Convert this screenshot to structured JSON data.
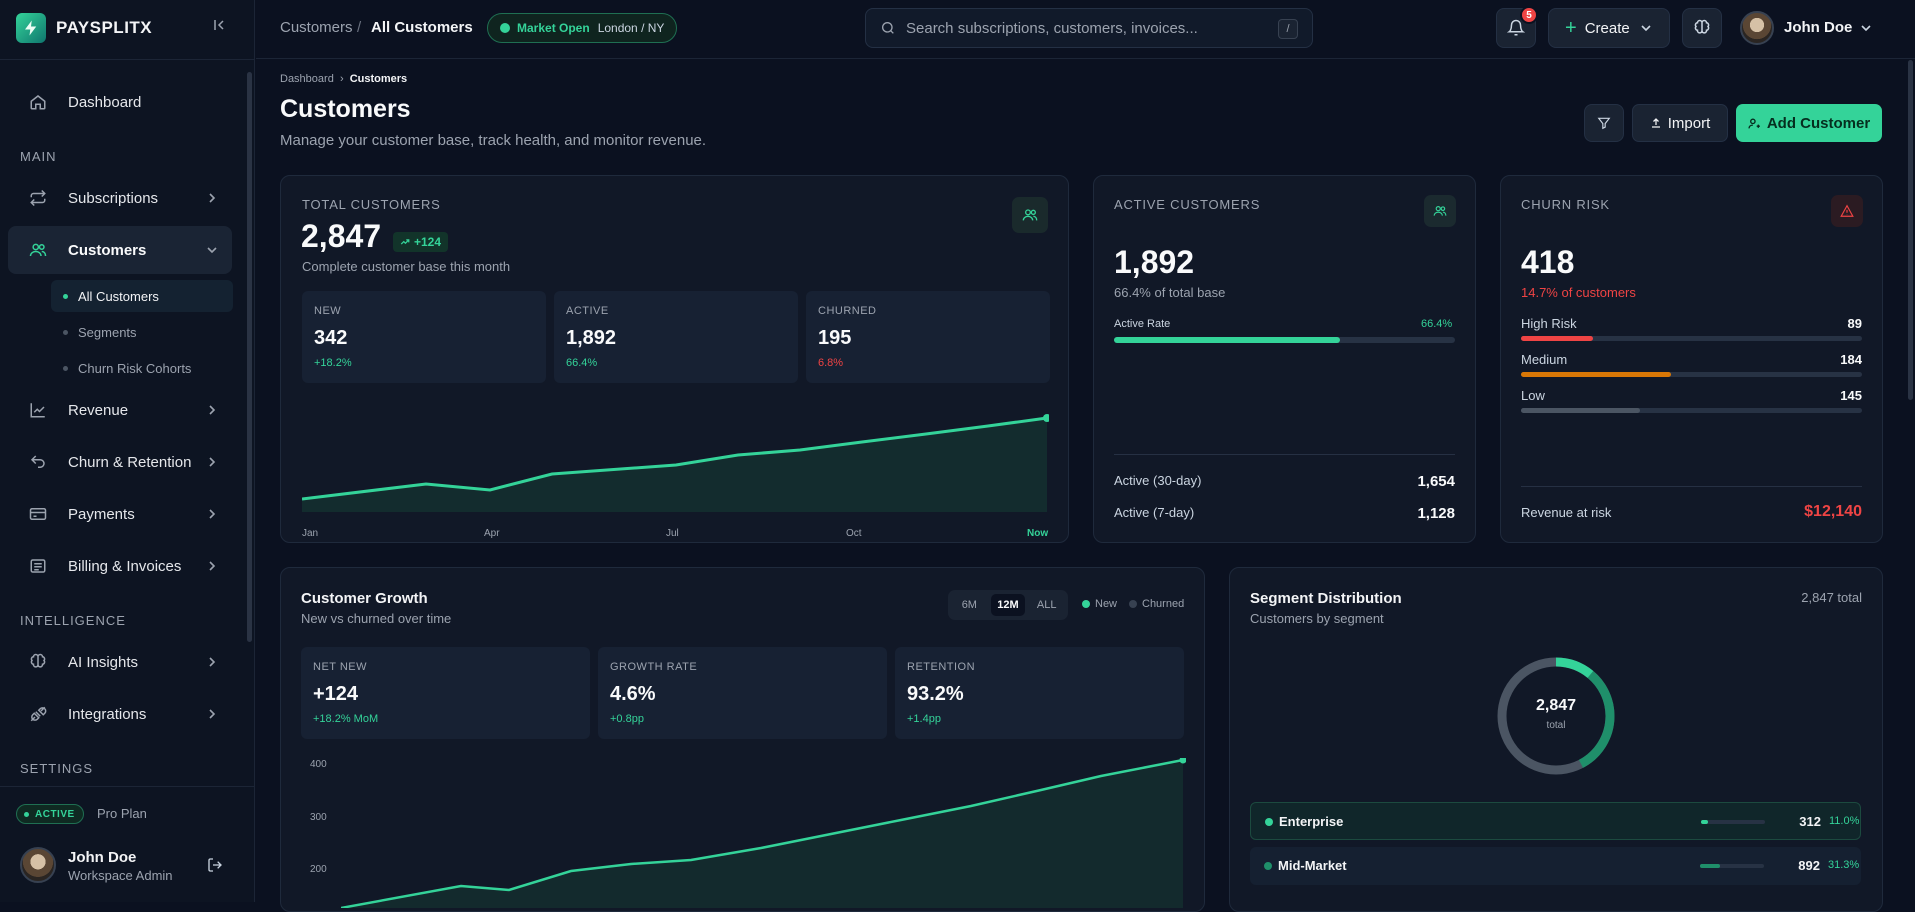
{
  "brand": {
    "name": "PAYSPLITX"
  },
  "sidebar": {
    "dashboard": "Dashboard",
    "section_main": "MAIN",
    "subscriptions": "Subscriptions",
    "customers": "Customers",
    "customers_sub": [
      "All Customers",
      "Segments",
      "Churn Risk Cohorts"
    ],
    "revenue": "Revenue",
    "churn": "Churn & Retention",
    "payments": "Payments",
    "billing": "Billing & Invoices",
    "section_intel": "INTELLIGENCE",
    "ai": "AI Insights",
    "integrations": "Integrations",
    "section_settings": "SETTINGS",
    "plan_badge": "ACTIVE",
    "plan_name": "Pro Plan",
    "user_name": "John Doe",
    "user_role": "Workspace Admin"
  },
  "topbar": {
    "crumb_parent": "Customers",
    "crumb_sep": "/",
    "crumb_current": "All Customers",
    "market_status": "Market Open",
    "market_zone": "London / NY",
    "search_placeholder": "Search subscriptions, customers, invoices...",
    "search_shortcut": "/",
    "notif_count": "5",
    "create_label": "Create",
    "user_name": "John Doe"
  },
  "page": {
    "bc_root": "Dashboard",
    "bc_current": "Customers",
    "title": "Customers",
    "subtitle": "Manage your customer base, track health, and monitor revenue.",
    "import_label": "Import",
    "add_label": "Add Customer"
  },
  "total_card": {
    "title": "TOTAL CUSTOMERS",
    "value": "2,847",
    "delta": "+124",
    "caption": "Complete customer base this month",
    "minis": [
      {
        "label": "NEW",
        "value": "342",
        "change": "+18.2%"
      },
      {
        "label": "ACTIVE",
        "value": "1,892",
        "change": "66.4%"
      },
      {
        "label": "CHURNED",
        "value": "195",
        "change": "6.8%"
      }
    ],
    "x_labels": [
      "Jan",
      "Apr",
      "Jul",
      "Oct",
      "Now"
    ]
  },
  "active_card": {
    "title": "ACTIVE CUSTOMERS",
    "value": "1,892",
    "caption": "66.4% of total base",
    "rate_label": "Active Rate",
    "rate_value": "66.4%",
    "rate": 0.664,
    "rows": [
      {
        "label": "Active (30-day)",
        "value": "1,654"
      },
      {
        "label": "Active (7-day)",
        "value": "1,128"
      }
    ]
  },
  "churn_card": {
    "title": "CHURN RISK",
    "value": "418",
    "caption": "14.7% of customers",
    "levels": [
      {
        "label": "High Risk",
        "value": "89",
        "color": "#ef4444",
        "fraction": 0.21
      },
      {
        "label": "Medium",
        "value": "184",
        "color": "#d97706",
        "fraction": 0.44
      },
      {
        "label": "Low",
        "value": "145",
        "color": "#4b5563",
        "fraction": 0.35
      }
    ],
    "revenue_label": "Revenue at risk",
    "revenue_value": "$12,140"
  },
  "growth_card": {
    "title": "Customer Growth",
    "subtitle": "New vs churned over time",
    "ranges": [
      "6M",
      "12M",
      "ALL"
    ],
    "legend_new": "New",
    "legend_churned": "Churned",
    "stats": [
      {
        "label": "NET NEW",
        "value": "+124",
        "change": "+18.2% MoM"
      },
      {
        "label": "GROWTH RATE",
        "value": "4.6%",
        "change": "+0.8pp"
      },
      {
        "label": "RETENTION",
        "value": "93.2%",
        "change": "+1.4pp"
      }
    ],
    "y_ticks": [
      "400",
      "300",
      "200"
    ]
  },
  "segment_card": {
    "title": "Segment Distribution",
    "subtitle": "Customers by segment",
    "total_label": "2,847 total",
    "donut_value": "2,847",
    "donut_caption": "total",
    "segments": [
      {
        "name": "Enterprise",
        "count": "312",
        "pct": "11.0%",
        "fraction": 0.11,
        "color": "#34d399"
      },
      {
        "name": "Mid-Market",
        "count": "892",
        "pct": "31.3%",
        "fraction": 0.313,
        "color": "#1f8f6a"
      }
    ]
  },
  "colors": {
    "accent": "#34d399",
    "danger": "#ef4444",
    "warning": "#d97706",
    "bg": "#0b1120"
  }
}
